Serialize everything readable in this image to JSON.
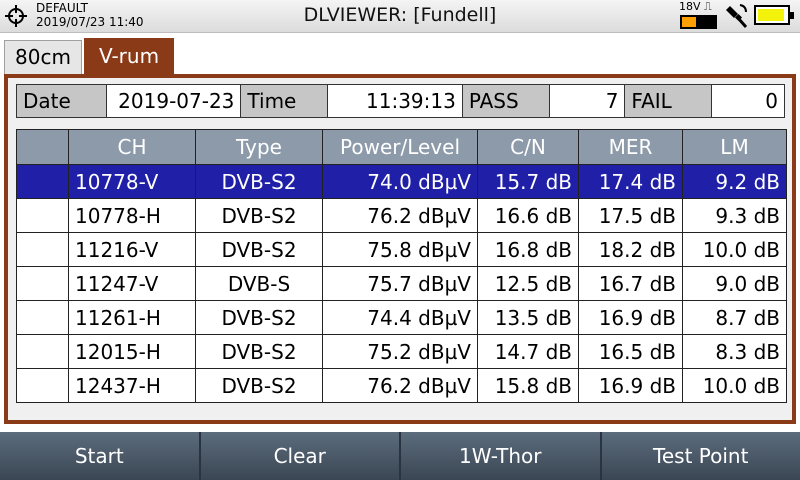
{
  "status": {
    "profile": "DEFAULT",
    "datetime": "2019/07/23 11:40",
    "title": "DLVIEWER: [Fundell]",
    "lnb_voltage": "18V",
    "lnb_signal": "⎍",
    "icons": [
      "crosshair-icon",
      "satellite-icon",
      "battery-icon"
    ],
    "battery_color": "#f2f20a"
  },
  "tabs": [
    {
      "label": "80cm",
      "active": false
    },
    {
      "label": "V-rum",
      "active": true
    }
  ],
  "summary": {
    "date_label": "Date",
    "date_value": "2019-07-23",
    "time_label": "Time",
    "time_value": "11:39:13",
    "pass_label": "PASS",
    "pass_value": "7",
    "fail_label": "FAIL",
    "fail_value": "0"
  },
  "table": {
    "headers": [
      "",
      "CH",
      "Type",
      "Power/Level",
      "C/N",
      "MER",
      "LM"
    ],
    "rows": [
      {
        "ch": "10778-V",
        "type": "DVB-S2",
        "power": "74.0 dBµV",
        "cn": "15.7 dB",
        "mer": "17.4 dB",
        "lm": "9.2 dB"
      },
      {
        "ch": "10778-H",
        "type": "DVB-S2",
        "power": "76.2 dBµV",
        "cn": "16.6 dB",
        "mer": "17.5 dB",
        "lm": "9.3 dB"
      },
      {
        "ch": "11216-V",
        "type": "DVB-S2",
        "power": "75.8 dBµV",
        "cn": "16.8 dB",
        "mer": "18.2 dB",
        "lm": "10.0 dB"
      },
      {
        "ch": "11247-V",
        "type": "DVB-S",
        "power": "75.7 dBµV",
        "cn": "12.5 dB",
        "mer": "16.7 dB",
        "lm": "9.0 dB"
      },
      {
        "ch": "11261-H",
        "type": "DVB-S2",
        "power": "74.4 dBµV",
        "cn": "13.5 dB",
        "mer": "16.9 dB",
        "lm": "8.7 dB"
      },
      {
        "ch": "12015-H",
        "type": "DVB-S2",
        "power": "75.2 dBµV",
        "cn": "14.7 dB",
        "mer": "16.5 dB",
        "lm": "8.3 dB"
      },
      {
        "ch": "12437-H",
        "type": "DVB-S2",
        "power": "76.2 dBµV",
        "cn": "15.8 dB",
        "mer": "16.9 dB",
        "lm": "10.0 dB"
      }
    ],
    "selected_row": 0,
    "selected_color": "#1f1fa8"
  },
  "softkeys": [
    "Start",
    "Clear",
    "1W-Thor",
    "Test Point"
  ],
  "colors": {
    "frame": "#8b3a18",
    "header": "#8c9aaa",
    "softkey_bar": "#4a5868"
  }
}
